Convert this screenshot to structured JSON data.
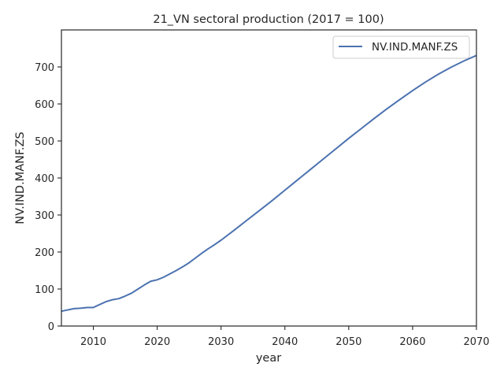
{
  "chart_data": {
    "type": "line",
    "title": "21_VN sectoral production (2017 = 100)",
    "xlabel": "year",
    "ylabel": "NV.IND.MANF.ZS",
    "xlim": [
      2005,
      2070
    ],
    "ylim": [
      0,
      800
    ],
    "xticks": [
      2010,
      2020,
      2030,
      2040,
      2050,
      2060,
      2070
    ],
    "yticks": [
      0,
      100,
      200,
      300,
      400,
      500,
      600,
      700
    ],
    "grid": false,
    "legend_position": "top-right",
    "colors": {
      "series": "#4c72b0",
      "axis": "#262626"
    },
    "series": [
      {
        "name": "NV.IND.MANF.ZS",
        "x": [
          2005,
          2007,
          2008,
          2009,
          2010,
          2011,
          2012,
          2013,
          2014,
          2015,
          2016,
          2017,
          2018,
          2019,
          2020,
          2021,
          2022,
          2023,
          2024,
          2025,
          2026,
          2027,
          2028,
          2029,
          2030,
          2032,
          2034,
          2036,
          2038,
          2040,
          2042,
          2044,
          2046,
          2048,
          2050,
          2052,
          2054,
          2056,
          2058,
          2060,
          2062,
          2064,
          2066,
          2068,
          2070
        ],
        "y": [
          40,
          47,
          48,
          50,
          50,
          58,
          66,
          71,
          74,
          81,
          89,
          100,
          111,
          121,
          125,
          132,
          141,
          150,
          160,
          171,
          184,
          197,
          209,
          220,
          232,
          258,
          285,
          312,
          339,
          367,
          395,
          423,
          451,
          479,
          507,
          534,
          561,
          587,
          612,
          636,
          659,
          680,
          699,
          716,
          731
        ]
      }
    ]
  }
}
